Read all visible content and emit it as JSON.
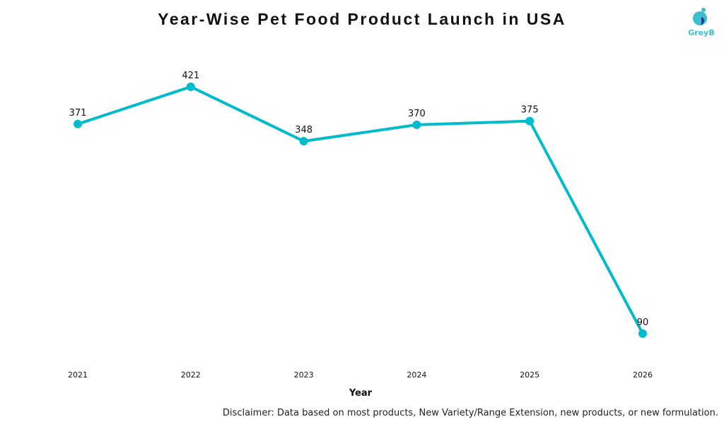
{
  "title": "Year-Wise Pet Food Product Launch in USA",
  "logo_text": "GreyB",
  "disclaimer": "Disclaimer: Data based on most products, New Variety/Range Extension, new products, or new formulation.",
  "colors": {
    "line": "#00bcca",
    "logo_light": "#3bbfcc",
    "logo_dark": "#1f3a93"
  },
  "chart_data": {
    "type": "line",
    "title": "Year-Wise Pet Food Product Launch in USA",
    "xlabel": "Year",
    "ylabel": "",
    "categories": [
      "2021",
      "2022",
      "2023",
      "2024",
      "2025",
      "2026"
    ],
    "values": [
      371,
      421,
      348,
      370,
      375,
      90
    ],
    "data_labels": [
      "371",
      "421",
      "348",
      "370",
      "375",
      "90"
    ],
    "ylim": [
      0,
      450
    ],
    "grid": false,
    "y_axis_visible": false
  }
}
